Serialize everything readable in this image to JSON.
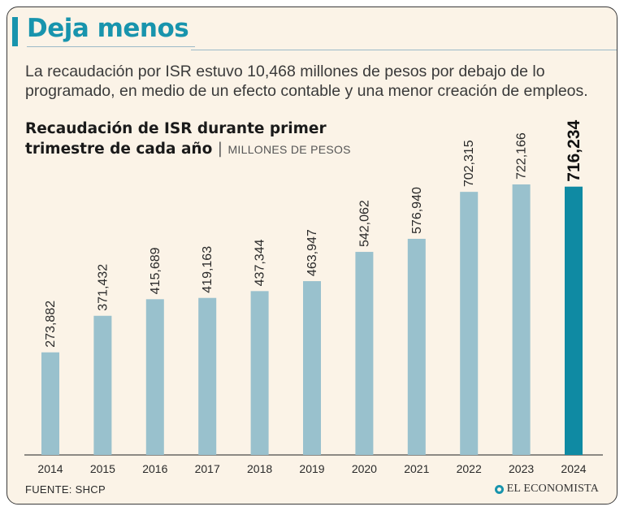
{
  "headline": "Deja menos",
  "dek": "La recaudación por ISR estuvo 10,468 millones de pesos por debajo de lo programado, en medio de un efecto contable y una menor creación de empleos.",
  "chart_title": {
    "line1": "Recaudación de ISR durante primer",
    "line2": "trimestre de cada año",
    "separator": "|",
    "unit": "MILLONES DE PESOS"
  },
  "source": "FUENTE: SHCP",
  "brand": "EL ECONOMISTA",
  "colors": {
    "bar": "#99c1cd",
    "highlight_bar": "#0f8aa3",
    "accent": "#1894ad",
    "background": "#fbf3e7"
  },
  "chart_data": {
    "type": "bar",
    "title": "Recaudación de ISR durante primer trimestre de cada año",
    "ylabel": "Millones de pesos",
    "xlabel": "",
    "categories": [
      "2014",
      "2015",
      "2016",
      "2017",
      "2018",
      "2019",
      "2020",
      "2021",
      "2022",
      "2023",
      "2024"
    ],
    "values": [
      273882,
      371432,
      415689,
      419163,
      437344,
      463947,
      542062,
      576940,
      702315,
      722166,
      716234
    ],
    "labels": [
      "273,882",
      "371,432",
      "415,689",
      "419,163",
      "437,344",
      "463,947",
      "542,062",
      "576,940",
      "702,315",
      "722,166",
      "716,234"
    ],
    "highlight_index": 10,
    "ylim": [
      0,
      722166
    ],
    "grid": false
  }
}
